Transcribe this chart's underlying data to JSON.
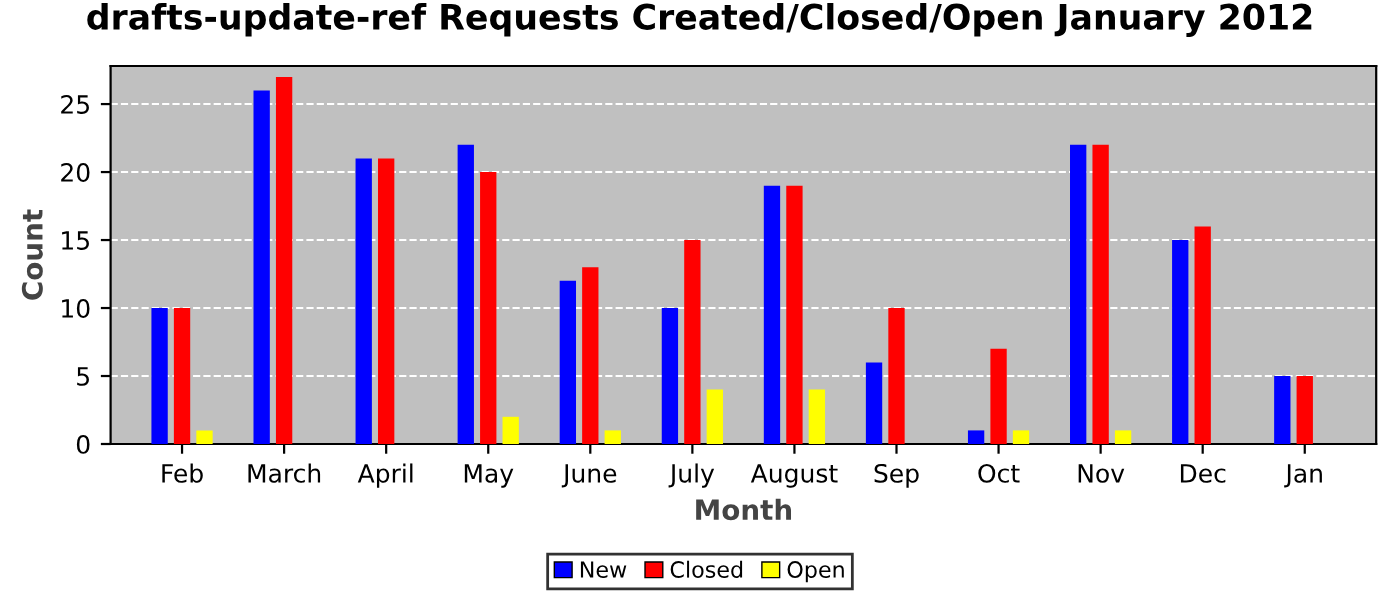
{
  "chart_data": {
    "type": "bar",
    "title": "drafts-update-ref Requests Created/Closed/Open January 2012",
    "xlabel": "Month",
    "ylabel": "Count",
    "categories": [
      "Feb",
      "March",
      "April",
      "May",
      "June",
      "July",
      "August",
      "Sep",
      "Oct",
      "Nov",
      "Dec",
      "Jan"
    ],
    "series": [
      {
        "name": "New",
        "color": "#0000ff",
        "values": [
          10,
          26,
          21,
          22,
          12,
          10,
          19,
          6,
          1,
          22,
          15,
          5
        ]
      },
      {
        "name": "Closed",
        "color": "#ff0000",
        "values": [
          10,
          27,
          21,
          20,
          13,
          15,
          19,
          10,
          7,
          22,
          16,
          5
        ]
      },
      {
        "name": "Open",
        "color": "#ffff00",
        "values": [
          1,
          0,
          0,
          2,
          1,
          4,
          4,
          0,
          1,
          1,
          0,
          0
        ]
      }
    ],
    "ylim": [
      0,
      27.8
    ],
    "yticks": [
      0,
      5,
      10,
      15,
      20,
      25
    ],
    "grid": "y",
    "legend": "bottom"
  }
}
